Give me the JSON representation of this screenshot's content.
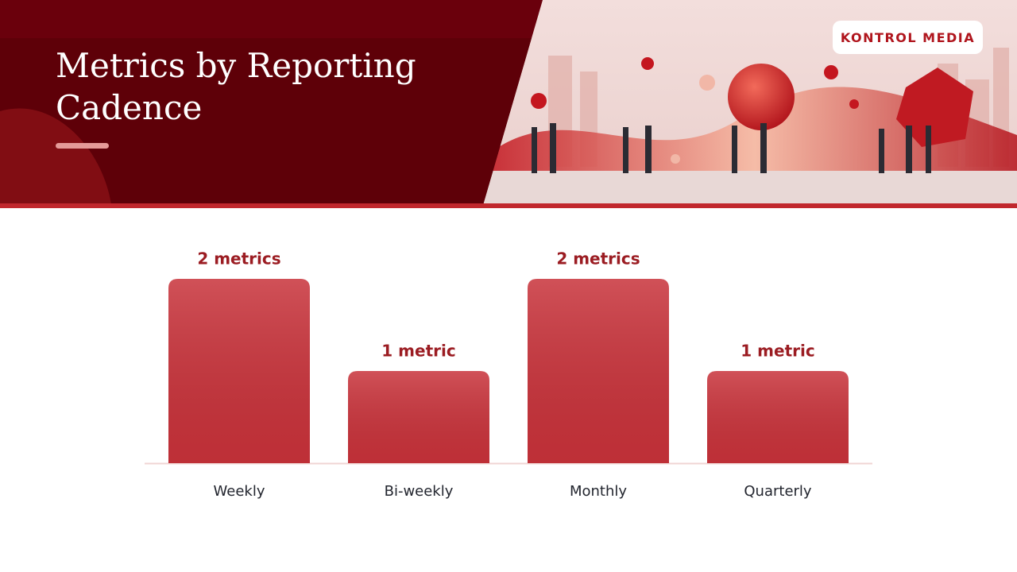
{
  "brand": "KONTROL MEDIA",
  "chart_data": {
    "type": "bar",
    "title": "Metrics by Reporting Cadence",
    "categories": [
      "Weekly",
      "Bi-weekly",
      "Monthly",
      "Quarterly"
    ],
    "values": [
      2,
      1,
      2,
      1
    ],
    "value_labels": [
      "2 metrics",
      "1 metric",
      "2 metrics",
      "1 metric"
    ],
    "color": "#c8323a"
  }
}
